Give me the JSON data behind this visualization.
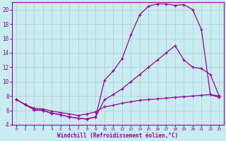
{
  "xlabel": "Windchill (Refroidissement éolien,°C)",
  "bg_color": "#c8ecf0",
  "grid_color": "#aaccd8",
  "line_color": "#990099",
  "xlim": [
    -0.5,
    23.5
  ],
  "ylim": [
    4,
    21
  ],
  "xticks": [
    0,
    1,
    2,
    3,
    4,
    5,
    6,
    7,
    8,
    9,
    10,
    11,
    12,
    13,
    14,
    15,
    16,
    17,
    18,
    19,
    20,
    21,
    22,
    23
  ],
  "yticks": [
    4,
    6,
    8,
    10,
    12,
    14,
    16,
    18,
    20
  ],
  "curve1_x": [
    0,
    1,
    2,
    3,
    4,
    5,
    6,
    7,
    8,
    9,
    10,
    11,
    12,
    13,
    14,
    15,
    16,
    17,
    18,
    19,
    20,
    21,
    22,
    23
  ],
  "curve1_y": [
    7.5,
    6.8,
    6.1,
    6.0,
    5.6,
    5.4,
    5.1,
    4.9,
    4.8,
    5.1,
    10.2,
    11.5,
    13.2,
    16.5,
    19.3,
    20.5,
    20.8,
    20.8,
    20.6,
    20.7,
    20.0,
    17.2,
    8.2,
    7.8
  ],
  "curve2_x": [
    0,
    1,
    2,
    3,
    4,
    5,
    6,
    7,
    8,
    9,
    10,
    11,
    12,
    13,
    14,
    15,
    16,
    17,
    18,
    19,
    20,
    21,
    22,
    23
  ],
  "curve2_y": [
    7.5,
    6.8,
    6.1,
    6.0,
    5.6,
    5.4,
    5.1,
    4.9,
    4.8,
    5.1,
    7.5,
    8.2,
    9.0,
    10.0,
    11.0,
    12.0,
    13.0,
    14.0,
    15.0,
    13.0,
    12.0,
    11.8,
    11.0,
    8.0
  ],
  "curve3_x": [
    0,
    1,
    2,
    3,
    4,
    5,
    6,
    7,
    8,
    9,
    10,
    11,
    12,
    13,
    14,
    15,
    16,
    17,
    18,
    19,
    20,
    21,
    22,
    23
  ],
  "curve3_y": [
    7.5,
    6.8,
    6.3,
    6.2,
    5.9,
    5.7,
    5.5,
    5.3,
    5.5,
    5.8,
    6.5,
    6.7,
    7.0,
    7.2,
    7.4,
    7.5,
    7.6,
    7.7,
    7.8,
    7.9,
    8.0,
    8.1,
    8.2,
    8.0
  ]
}
